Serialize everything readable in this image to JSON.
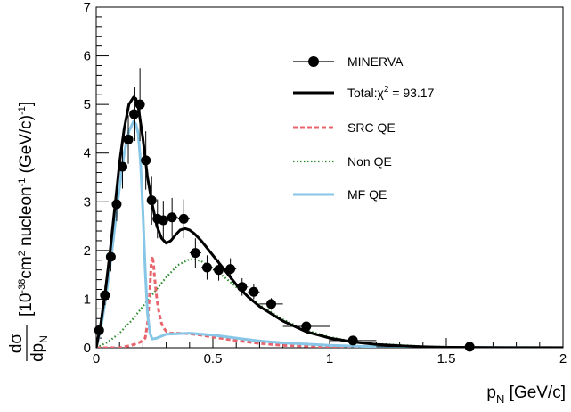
{
  "chart_data": {
    "type": "line",
    "title": "",
    "xlabel": {
      "main": "p",
      "sub": "N",
      "unit": " [GeV/c]"
    },
    "ylabel": {
      "frac_num": "dσ",
      "frac_den_main": "dp",
      "frac_den_sub": "N",
      "bracket": "[10",
      "exp1": "-38",
      "cm": "cm",
      "exp2": "2",
      "nucleon": " nucleon",
      "exp3": "-1",
      "unit": " (GeV/c)",
      "exp4": "-1",
      "close": "]"
    },
    "xlim": [
      0,
      2
    ],
    "ylim": [
      0,
      7
    ],
    "x_ticks": [
      0,
      0.5,
      1,
      1.5,
      2
    ],
    "x_tick_labels": [
      "0",
      "0.5",
      "1",
      "1.5",
      "2"
    ],
    "y_ticks": [
      0,
      1,
      2,
      3,
      4,
      5,
      6,
      7
    ],
    "y_tick_labels": [
      "0",
      "1",
      "2",
      "3",
      "4",
      "5",
      "6",
      "7"
    ],
    "grid": false,
    "legend_position": "top-right",
    "data_points": {
      "name": "MINERVA",
      "color": "#000000",
      "points": [
        {
          "x": 0.0125,
          "y": 0.36,
          "xerr": 0.0125,
          "yerr": 0.1
        },
        {
          "x": 0.0375,
          "y": 1.08,
          "xerr": 0.0125,
          "yerr": 0.2
        },
        {
          "x": 0.0625,
          "y": 1.87,
          "xerr": 0.0125,
          "yerr": 0.3
        },
        {
          "x": 0.0875,
          "y": 2.95,
          "xerr": 0.0125,
          "yerr": 0.35
        },
        {
          "x": 0.1125,
          "y": 3.72,
          "xerr": 0.0125,
          "yerr": 0.45
        },
        {
          "x": 0.1375,
          "y": 4.28,
          "xerr": 0.0125,
          "yerr": 0.5
        },
        {
          "x": 0.1625,
          "y": 4.8,
          "xerr": 0.0125,
          "yerr": 0.55
        },
        {
          "x": 0.1875,
          "y": 5.0,
          "xerr": 0.0125,
          "yerr": 0.75
        },
        {
          "x": 0.2125,
          "y": 3.85,
          "xerr": 0.0125,
          "yerr": 0.6
        },
        {
          "x": 0.2375,
          "y": 3.03,
          "xerr": 0.0125,
          "yerr": 0.5
        },
        {
          "x": 0.2625,
          "y": 2.65,
          "xerr": 0.0125,
          "yerr": 0.4
        },
        {
          "x": 0.2875,
          "y": 2.62,
          "xerr": 0.0125,
          "yerr": 0.4
        },
        {
          "x": 0.325,
          "y": 2.68,
          "xerr": 0.025,
          "yerr": 0.4
        },
        {
          "x": 0.375,
          "y": 2.65,
          "xerr": 0.025,
          "yerr": 0.4
        },
        {
          "x": 0.425,
          "y": 1.95,
          "xerr": 0.025,
          "yerr": 0.3
        },
        {
          "x": 0.475,
          "y": 1.65,
          "xerr": 0.025,
          "yerr": 0.25
        },
        {
          "x": 0.525,
          "y": 1.6,
          "xerr": 0.025,
          "yerr": 0.22
        },
        {
          "x": 0.575,
          "y": 1.62,
          "xerr": 0.025,
          "yerr": 0.22
        },
        {
          "x": 0.625,
          "y": 1.25,
          "xerr": 0.025,
          "yerr": 0.18
        },
        {
          "x": 0.675,
          "y": 1.15,
          "xerr": 0.025,
          "yerr": 0.15
        },
        {
          "x": 0.75,
          "y": 0.9,
          "xerr": 0.05,
          "yerr": 0.12
        },
        {
          "x": 0.9,
          "y": 0.44,
          "xerr": 0.1,
          "yerr": 0.08
        },
        {
          "x": 1.1,
          "y": 0.15,
          "xerr": 0.1,
          "yerr": 0.05
        },
        {
          "x": 1.6,
          "y": 0.02,
          "xerr": 0.4,
          "yerr": 0.02
        }
      ]
    },
    "series": [
      {
        "name": "Total:",
        "name_suffix": " = 93.17",
        "name_symbol": "χ",
        "name_exp": "2",
        "color": "#000000",
        "style": "solid",
        "x": [
          0,
          0.02,
          0.04,
          0.06,
          0.08,
          0.1,
          0.12,
          0.14,
          0.16,
          0.17,
          0.18,
          0.2,
          0.22,
          0.24,
          0.26,
          0.28,
          0.3,
          0.32,
          0.34,
          0.36,
          0.38,
          0.4,
          0.42,
          0.45,
          0.5,
          0.55,
          0.6,
          0.65,
          0.7,
          0.8,
          0.9,
          1.0,
          1.1,
          1.2,
          1.3,
          1.4,
          1.5,
          1.75,
          2.0
        ],
        "y": [
          0,
          0.5,
          1.2,
          2.0,
          2.9,
          3.8,
          4.5,
          5.0,
          5.15,
          5.12,
          4.95,
          4.3,
          3.5,
          2.95,
          2.5,
          2.25,
          2.15,
          2.2,
          2.32,
          2.42,
          2.45,
          2.42,
          2.35,
          2.2,
          1.9,
          1.6,
          1.3,
          1.05,
          0.85,
          0.55,
          0.33,
          0.2,
          0.12,
          0.07,
          0.04,
          0.02,
          0.01,
          0,
          0
        ]
      },
      {
        "name": "SRC QE",
        "color": "#e8656d",
        "style": "dashed",
        "x": [
          0,
          0.1,
          0.15,
          0.19,
          0.21,
          0.22,
          0.23,
          0.235,
          0.24,
          0.245,
          0.25,
          0.26,
          0.27,
          0.28,
          0.29,
          0.3,
          0.32,
          0.35,
          0.4,
          0.45,
          0.5,
          0.6,
          0.7,
          0.8,
          1.0,
          1.2,
          1.5,
          2.0
        ],
        "y": [
          0,
          0,
          0.05,
          0.12,
          0.2,
          0.5,
          1.2,
          1.7,
          1.88,
          1.75,
          1.45,
          1.0,
          0.7,
          0.5,
          0.4,
          0.34,
          0.3,
          0.3,
          0.29,
          0.26,
          0.22,
          0.15,
          0.09,
          0.05,
          0.02,
          0.01,
          0,
          0
        ]
      },
      {
        "name": "Non QE",
        "color": "#2e8b2e",
        "style": "dotted",
        "x": [
          0,
          0.05,
          0.1,
          0.15,
          0.2,
          0.25,
          0.3,
          0.35,
          0.4,
          0.42,
          0.45,
          0.5,
          0.55,
          0.6,
          0.65,
          0.7,
          0.8,
          0.9,
          1.0,
          1.1,
          1.2,
          1.4,
          1.6,
          2.0
        ],
        "y": [
          0,
          0.12,
          0.3,
          0.55,
          0.85,
          1.15,
          1.45,
          1.7,
          1.82,
          1.82,
          1.78,
          1.62,
          1.45,
          1.25,
          1.05,
          0.88,
          0.58,
          0.36,
          0.22,
          0.13,
          0.08,
          0.03,
          0.01,
          0
        ]
      },
      {
        "name": "MF QE",
        "color": "#87c6e6",
        "style": "solid",
        "x": [
          0,
          0.02,
          0.04,
          0.06,
          0.08,
          0.1,
          0.12,
          0.14,
          0.16,
          0.17,
          0.18,
          0.19,
          0.2,
          0.21,
          0.22,
          0.23,
          0.24,
          0.26,
          0.3,
          0.4,
          0.5,
          0.6,
          0.7,
          0.8,
          1.0,
          1.2,
          1.5,
          2.0
        ],
        "y": [
          0,
          0.4,
          1.0,
          1.7,
          2.5,
          3.3,
          4.0,
          4.45,
          4.65,
          4.6,
          4.4,
          3.8,
          2.8,
          1.6,
          0.7,
          0.3,
          0.18,
          0.2,
          0.28,
          0.3,
          0.26,
          0.2,
          0.14,
          0.1,
          0.05,
          0.02,
          0.01,
          0
        ]
      }
    ]
  }
}
